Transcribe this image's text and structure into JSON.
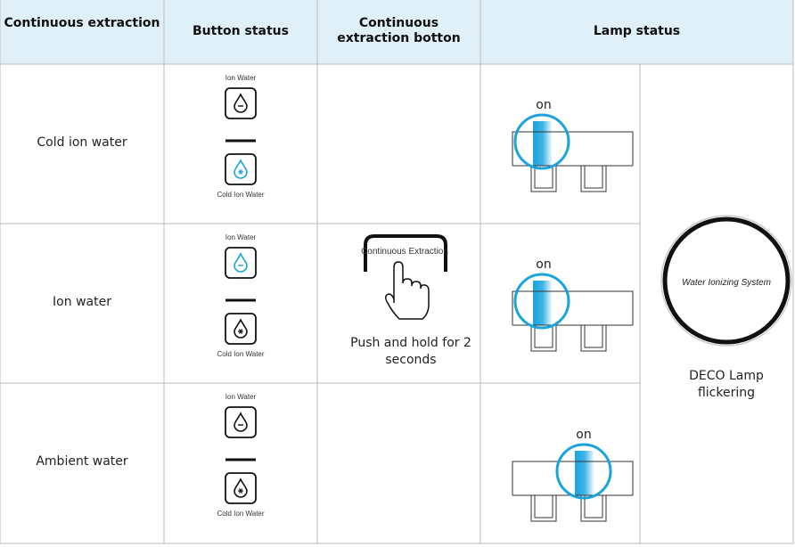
{
  "header": {
    "columns": [
      "Continuous extraction",
      "Button status",
      "Continuous extraction botton",
      "Lamp status"
    ]
  },
  "rows": [
    {
      "label": "Cold ion water",
      "button_top": "Ion Water",
      "button_bottom": "Cold Ion Water",
      "lamp_label": "on"
    },
    {
      "label": "Ion water",
      "button_top": "Ion Water",
      "button_bottom": "Cold Ion Water",
      "lamp_label": "on"
    },
    {
      "label": "Ambient water",
      "button_top": "Ion Water",
      "button_bottom": "Cold Ion Water",
      "lamp_label": "on"
    }
  ],
  "extraction_button": {
    "label": "Continuous Extraction",
    "instruction": "Push and hold for 2 seconds"
  },
  "deco": {
    "lamp_text": "Water Ionizing System",
    "status": "DECO Lamp flickering"
  }
}
